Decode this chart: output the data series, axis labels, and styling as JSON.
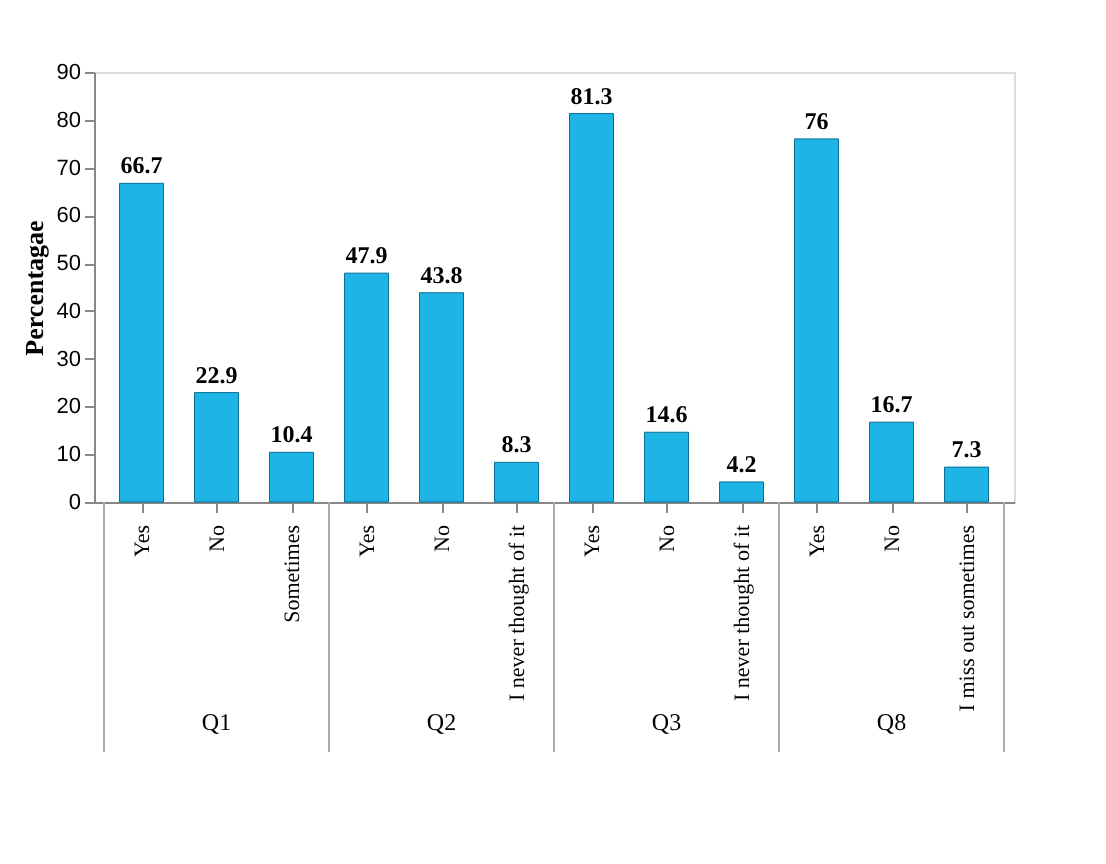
{
  "chart_data": {
    "type": "bar",
    "ylabel": "Percentagae",
    "categories": [
      "Yes",
      "No",
      "Sometimes",
      "Yes",
      "No",
      "I never thought of it",
      "Yes",
      "No",
      "I never thought of it",
      "Yes",
      "No",
      "I miss out sometimes"
    ],
    "values": [
      66.7,
      22.9,
      10.4,
      47.9,
      43.8,
      8.3,
      81.3,
      14.6,
      4.2,
      76,
      16.7,
      7.3
    ],
    "color": "#1fb4e6",
    "ylim": [
      0,
      90
    ],
    "yticks": [
      0,
      10,
      20,
      30,
      40,
      50,
      60,
      70,
      80,
      90
    ],
    "data_labels": true,
    "grid": false,
    "annotations": [
      "Q1",
      "Q2",
      "Q3",
      "Q8"
    ]
  }
}
